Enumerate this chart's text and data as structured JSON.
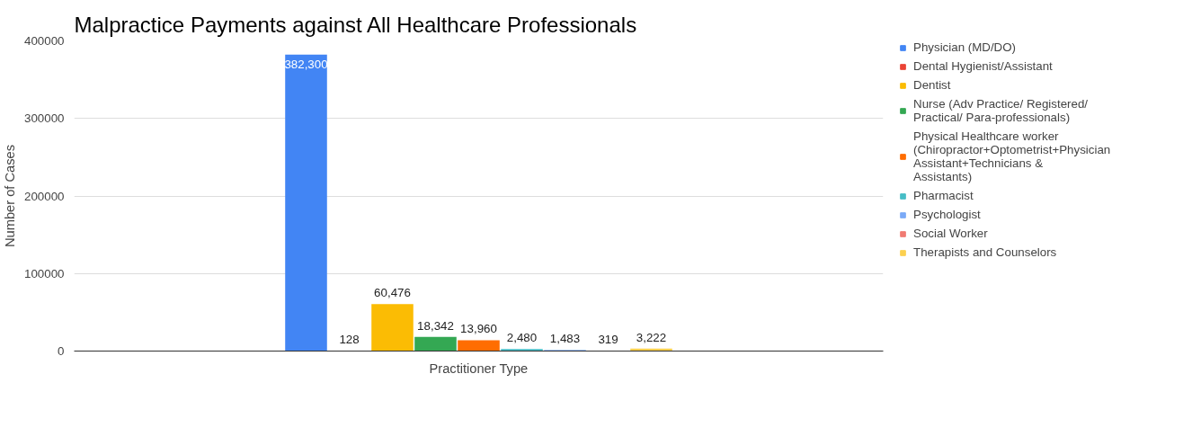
{
  "chart_data": {
    "type": "bar",
    "title": "Malpractice Payments against All Healthcare Professionals",
    "xlabel": "Practitioner Type",
    "ylabel": "Number of Cases",
    "categories": [
      null
    ],
    "series": [
      {
        "name": "Physician (MD/DO)",
        "color": "#4285f4",
        "values": [
          382300
        ],
        "value_labels": [
          "382,300"
        ]
      },
      {
        "name": "Dental Hygienist/Assistant",
        "color": "#ea4335",
        "values": [
          128
        ],
        "value_labels": [
          "128"
        ]
      },
      {
        "name": "Dentist",
        "color": "#fbbc04",
        "values": [
          60476
        ],
        "value_labels": [
          "60,476"
        ]
      },
      {
        "name": "Nurse (Adv Practice/ Registered/ Practical/ Para-professionals)",
        "color": "#34a853",
        "values": [
          18342
        ],
        "value_labels": [
          "18,342"
        ]
      },
      {
        "name": "Physical Healthcare worker (Chiropractor+Optometrist+Physician Assistant+Technicians & Assistants)",
        "color": "#ff6d01",
        "values": [
          13960
        ],
        "value_labels": [
          "13,960"
        ]
      },
      {
        "name": "Pharmacist",
        "color": "#46bdc6",
        "values": [
          2480
        ],
        "value_labels": [
          "2,480"
        ]
      },
      {
        "name": "Psychologist",
        "color": "#7baaf7",
        "values": [
          1483
        ],
        "value_labels": [
          "1,483"
        ]
      },
      {
        "name": "Social Worker",
        "color": "#f07b72",
        "values": [
          319
        ],
        "value_labels": [
          "319"
        ]
      },
      {
        "name": "Therapists and Counselors",
        "color": "#fcd04f",
        "values": [
          3222
        ],
        "value_labels": [
          "3,222"
        ]
      }
    ],
    "ylim": [
      0,
      400000
    ],
    "yticks": [
      0,
      100000,
      200000,
      300000,
      400000
    ],
    "grid": "y",
    "legend": "right"
  }
}
